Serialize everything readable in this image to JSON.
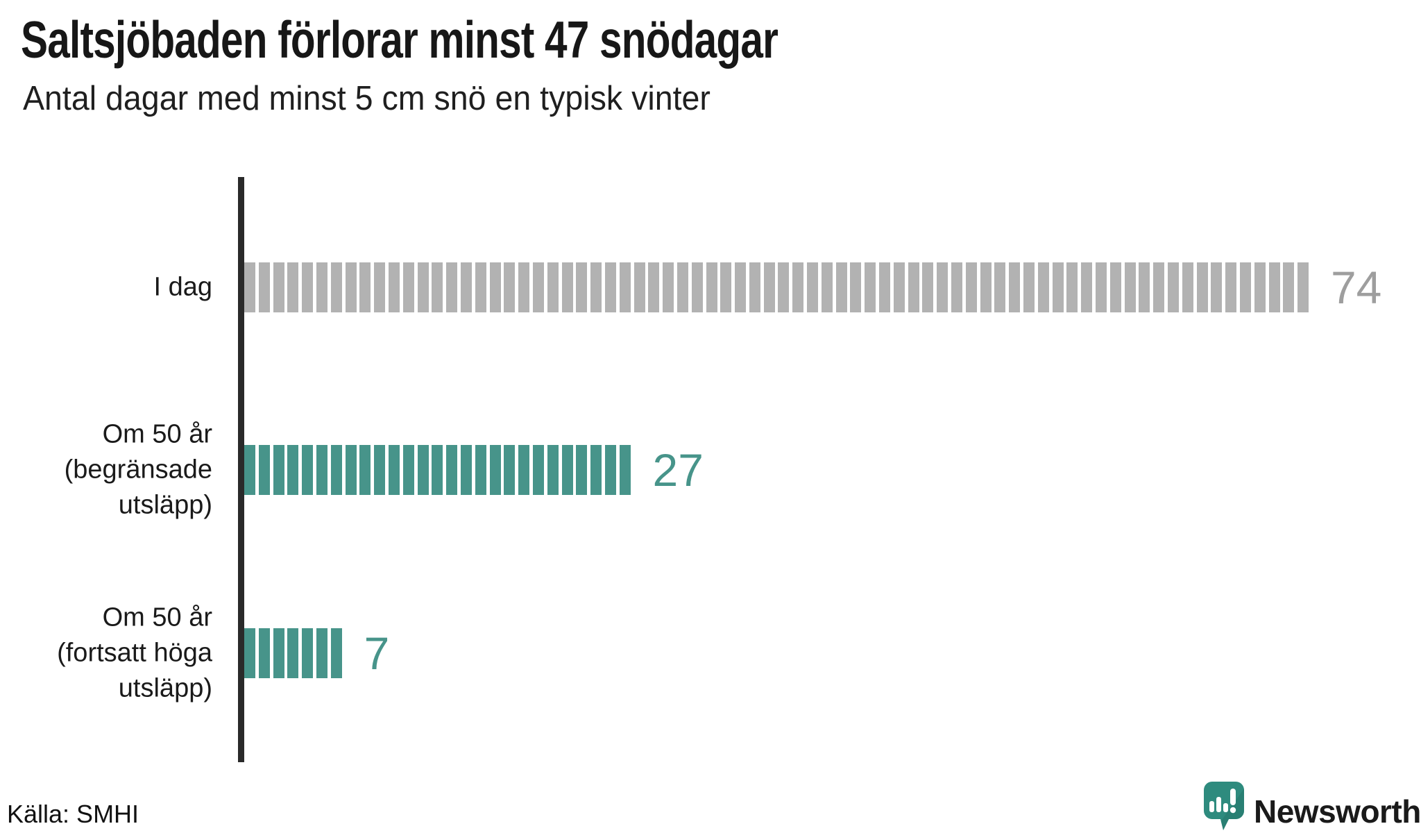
{
  "title": "Saltsjöbaden förlorar minst 47 snödagar",
  "subtitle": "Antal dagar med minst 5 cm snö en typisk vinter",
  "source": "Källa: SMHI",
  "brand": {
    "name": "Newsworthy",
    "color": "#2f8d80",
    "icon": "newsworthy-speech-bubble-bar-chart-icon",
    "icon_color": "#2e8b7e",
    "icon_shade_color": "#27786d"
  },
  "colors": {
    "background": "#ffffff",
    "axis": "#2a2a2a",
    "text": "#1a1a1a",
    "today_bar": "#b2b2b2",
    "today_value": "#9e9e9e",
    "scenario_bar": "#47948a",
    "scenario_value": "#47948a"
  },
  "chart_data": {
    "type": "bar",
    "orientation": "horizontal",
    "title": "Saltsjöbaden förlorar minst 47 snödagar",
    "subtitle": "Antal dagar med minst 5 cm snö en typisk vinter",
    "source": "Källa: SMHI",
    "unit": "dagar med minst 5 cm snö",
    "segmented": true,
    "segment_unit": 1,
    "grid": false,
    "xlim": [
      0,
      86
    ],
    "categories": [
      "I dag",
      "Om 50 år (begränsade utsläpp)",
      "Om 50 år (fortsatt höga utsläpp)"
    ],
    "category_lines": [
      [
        "I dag"
      ],
      [
        "Om 50 år",
        "(begränsade",
        "utsläpp)"
      ],
      [
        "Om 50 år",
        "(fortsatt höga",
        "utsläpp)"
      ]
    ],
    "values": [
      74,
      27,
      7
    ],
    "value_labels": [
      "74",
      "27",
      "7"
    ],
    "bar_colors": [
      "#b2b2b2",
      "#47948a",
      "#47948a"
    ],
    "value_label_colors": [
      "#9e9e9e",
      "#47948a",
      "#47948a"
    ]
  }
}
